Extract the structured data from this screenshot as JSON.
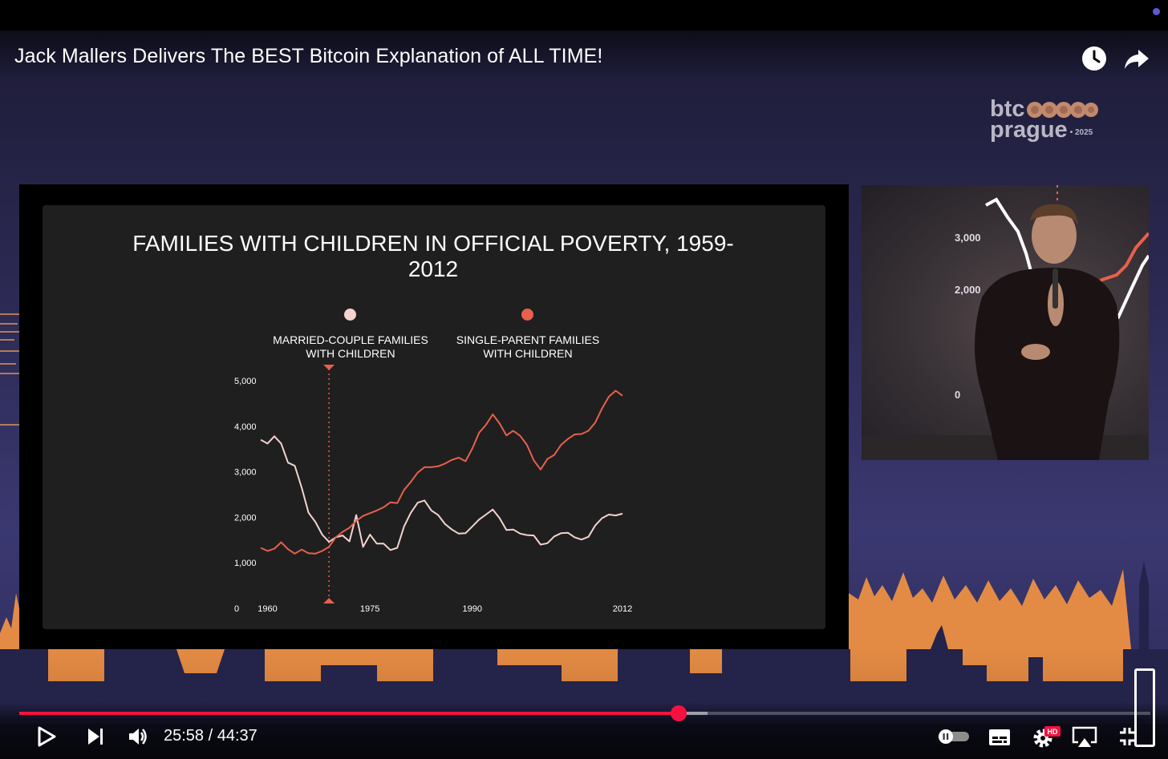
{
  "video": {
    "title": "Jack Mallers Delivers The BEST Bitcoin Explanation of ALL TIME!",
    "current_time": "25:58",
    "separator": "/",
    "duration": "44:37",
    "progress_fraction": 0.5832,
    "buffered_fraction": 0.6085
  },
  "brand": {
    "line1": "btc",
    "line2": "prague",
    "year": "• 2025"
  },
  "icons": {
    "watch_later": "clock-icon",
    "share": "share-arrow-icon",
    "play": "play-icon",
    "next": "next-icon",
    "volume": "volume-icon",
    "autoplay": "autoplay-toggle",
    "subtitles": "subtitles-icon",
    "settings": "gear-icon",
    "settings_badge": "HD",
    "airplay": "airplay-icon",
    "exit_fullscreen": "exit-fullscreen-icon"
  },
  "colors": {
    "progress": "#f3123f",
    "married": "#f4d3cf",
    "single": "#e8604c",
    "marker": "#e8604c"
  },
  "chart_data": {
    "type": "line",
    "title": "FAMILIES WITH CHILDREN IN OFFICIAL POVERTY, 1959-2012",
    "xlabel": "",
    "ylabel": "",
    "yticks": [
      "0",
      "1,000",
      "2,000",
      "3,000",
      "4,000",
      "5,000"
    ],
    "xticks": [
      "1960",
      "1975",
      "1990",
      "2012"
    ],
    "ylim": [
      0,
      5000
    ],
    "xlim": [
      1959,
      2012
    ],
    "marker_year": 1969,
    "legend_placement": "top",
    "series": [
      {
        "name": "MARRIED-COUPLE FAMILIES WITH CHILDREN",
        "color": "#f4d3cf",
        "x": [
          1959,
          1960,
          1961,
          1962,
          1963,
          1964,
          1965,
          1966,
          1967,
          1968,
          1969,
          1970,
          1971,
          1972,
          1973,
          1974,
          1975,
          1976,
          1977,
          1978,
          1979,
          1980,
          1981,
          1982,
          1983,
          1984,
          1985,
          1986,
          1987,
          1988,
          1989,
          1990,
          1991,
          1992,
          1993,
          1994,
          1995,
          1996,
          1997,
          1998,
          1999,
          2000,
          2001,
          2002,
          2003,
          2004,
          2005,
          2006,
          2007,
          2008,
          2009,
          2010,
          2011,
          2012
        ],
        "values": [
          3700,
          3620,
          3780,
          3620,
          3200,
          3130,
          2650,
          2100,
          1900,
          1620,
          1460,
          1560,
          1600,
          1470,
          2050,
          1350,
          1620,
          1420,
          1420,
          1280,
          1330,
          1800,
          2100,
          2320,
          2370,
          2150,
          2050,
          1850,
          1730,
          1640,
          1650,
          1800,
          1950,
          2060,
          2170,
          1980,
          1720,
          1730,
          1640,
          1610,
          1600,
          1400,
          1430,
          1580,
          1650,
          1660,
          1560,
          1510,
          1570,
          1820,
          1980,
          2060,
          2040,
          2080
        ]
      },
      {
        "name": "SINGLE-PARENT FAMILIES WITH CHILDREN",
        "color": "#e8604c",
        "x": [
          1959,
          1960,
          1961,
          1962,
          1963,
          1964,
          1965,
          1966,
          1967,
          1968,
          1969,
          1970,
          1971,
          1972,
          1973,
          1974,
          1975,
          1976,
          1977,
          1978,
          1979,
          1980,
          1981,
          1982,
          1983,
          1984,
          1985,
          1986,
          1987,
          1988,
          1989,
          1990,
          1991,
          1992,
          1993,
          1994,
          1995,
          1996,
          1997,
          1998,
          1999,
          2000,
          2001,
          2002,
          2003,
          2004,
          2005,
          2006,
          2007,
          2008,
          2009,
          2010,
          2011,
          2012
        ],
        "values": [
          1330,
          1260,
          1310,
          1450,
          1300,
          1200,
          1290,
          1210,
          1200,
          1260,
          1350,
          1560,
          1680,
          1770,
          1920,
          2030,
          2090,
          2150,
          2220,
          2330,
          2310,
          2600,
          2780,
          2980,
          3100,
          3100,
          3120,
          3180,
          3260,
          3310,
          3230,
          3510,
          3860,
          4030,
          4260,
          4060,
          3800,
          3900,
          3790,
          3590,
          3250,
          3050,
          3280,
          3370,
          3590,
          3720,
          3820,
          3830,
          3900,
          4080,
          4390,
          4650,
          4780,
          4670
        ]
      }
    ]
  }
}
